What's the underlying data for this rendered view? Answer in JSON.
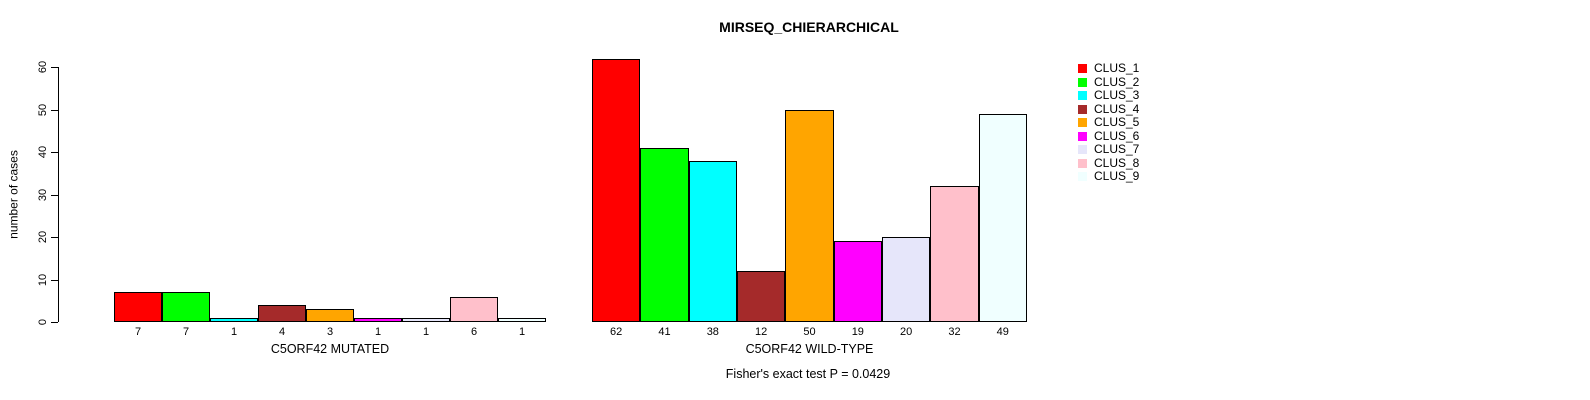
{
  "chart_data": {
    "type": "bar",
    "title": "MIRSEQ_CHIERARCHICAL",
    "ylabel": "number of cases",
    "ylim": [
      0,
      60
    ],
    "yticks": [
      0,
      10,
      20,
      30,
      40,
      50,
      60
    ],
    "grid": false,
    "legend_position": "top-right",
    "categories": [
      "CLUS_1",
      "CLUS_2",
      "CLUS_3",
      "CLUS_4",
      "CLUS_5",
      "CLUS_6",
      "CLUS_7",
      "CLUS_8",
      "CLUS_9"
    ],
    "series_colors": [
      "#FF0000",
      "#00FF00",
      "#00FFFF",
      "#A52A2A",
      "#FFA500",
      "#FF00FF",
      "#E6E6FA",
      "#FFC0CB",
      "#F0FFFF"
    ],
    "groups": [
      {
        "label": "C5ORF42 MUTATED",
        "values": [
          7,
          7,
          1,
          4,
          3,
          1,
          1,
          6,
          1
        ]
      },
      {
        "label": "C5ORF42 WILD-TYPE",
        "values": [
          62,
          41,
          38,
          12,
          50,
          19,
          20,
          32,
          49
        ]
      }
    ],
    "annotation": "Fisher's exact test P = 0.0429"
  }
}
